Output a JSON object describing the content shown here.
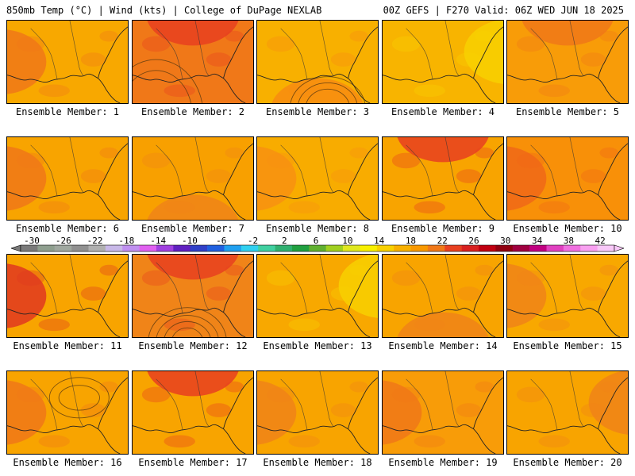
{
  "header": {
    "left": "850mb Temp (°C) | Wind (kts) | College of DuPage NEXLAB",
    "right": "00Z GEFS | F270 Valid: 06Z WED JUN 18 2025"
  },
  "caption_prefix": "Ensemble Member: ",
  "members": [
    {
      "id": "1",
      "base": "#f8a800",
      "hot": "#f07818",
      "hot_at": "left"
    },
    {
      "id": "2",
      "base": "#f07818",
      "hot": "#e84020",
      "hot_at": "top"
    },
    {
      "id": "3",
      "base": "#f8b000",
      "hot": "#f88c10",
      "hot_at": "bottom"
    },
    {
      "id": "4",
      "base": "#f8b400",
      "hot": "#f8d000",
      "hot_at": "right"
    },
    {
      "id": "5",
      "base": "#f89c08",
      "hot": "#f07818",
      "hot_at": "top"
    },
    {
      "id": "6",
      "base": "#f8a400",
      "hot": "#f07818",
      "hot_at": "left"
    },
    {
      "id": "7",
      "base": "#f8a000",
      "hot": "#f08418",
      "hot_at": "bottom"
    },
    {
      "id": "8",
      "base": "#f8ac00",
      "hot": "#f89010",
      "hot_at": "left"
    },
    {
      "id": "9",
      "base": "#f8a400",
      "hot": "#e84020",
      "hot_at": "top"
    },
    {
      "id": "10",
      "base": "#f89008",
      "hot": "#f06818",
      "hot_at": "left"
    },
    {
      "id": "11",
      "base": "#f8a400",
      "hot": "#e03820",
      "hot_at": "left"
    },
    {
      "id": "12",
      "base": "#f08418",
      "hot": "#e84020",
      "hot_at": "top"
    },
    {
      "id": "13",
      "base": "#f8a800",
      "hot": "#f8d000",
      "hot_at": "right"
    },
    {
      "id": "14",
      "base": "#f8a400",
      "hot": "#f08418",
      "hot_at": "bottom"
    },
    {
      "id": "15",
      "base": "#f8a800",
      "hot": "#f08418",
      "hot_at": "left"
    },
    {
      "id": "16",
      "base": "#f8a400",
      "hot": "#f07818",
      "hot_at": "left"
    },
    {
      "id": "17",
      "base": "#f8a400",
      "hot": "#e84020",
      "hot_at": "top"
    },
    {
      "id": "18",
      "base": "#f8a400",
      "hot": "#f08418",
      "hot_at": "left"
    },
    {
      "id": "19",
      "base": "#f89c08",
      "hot": "#f07818",
      "hot_at": "left"
    },
    {
      "id": "20",
      "base": "#f8a400",
      "hot": "#f08418",
      "hot_at": "right"
    }
  ],
  "colorbar": {
    "labels": [
      "-30",
      "-26",
      "-22",
      "-18",
      "-14",
      "-10",
      "-6",
      "-2",
      "2",
      "6",
      "10",
      "14",
      "18",
      "22",
      "26",
      "30",
      "34",
      "38",
      "42"
    ],
    "colors": [
      "#7a7a7a",
      "#8f9f8f",
      "#a0a8a0",
      "#909090",
      "#b0b0b0",
      "#c8b8e8",
      "#c090f0",
      "#e060f0",
      "#a040e0",
      "#6020c0",
      "#3040c8",
      "#2060e0",
      "#20a0f0",
      "#30d0f0",
      "#40d0a0",
      "#30b070",
      "#20a040",
      "#60b030",
      "#a0d020",
      "#e0e820",
      "#f8f000",
      "#f8d000",
      "#f8b000",
      "#f89800",
      "#f07818",
      "#e84020",
      "#d82020",
      "#c00010",
      "#900010",
      "#a00040",
      "#c00080",
      "#e040c0",
      "#f070e0",
      "#f8a0f0",
      "#f8c8f8"
    ]
  }
}
